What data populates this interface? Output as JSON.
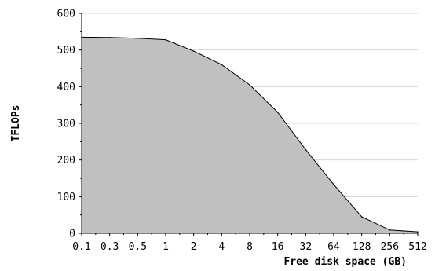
{
  "chart_data": {
    "type": "area",
    "title": "",
    "xlabel": "Free disk space (GB)",
    "ylabel": "TFLOPs",
    "x_scale": "categorical",
    "categories": [
      "0.1",
      "0.3",
      "0.5",
      "1",
      "2",
      "4",
      "8",
      "16",
      "32",
      "64",
      "128",
      "256",
      "512"
    ],
    "y_ticks": [
      "0",
      "100",
      "200",
      "300",
      "400",
      "500",
      "600"
    ],
    "ylim": [
      0,
      600
    ],
    "grid": true,
    "series": [
      {
        "values": [
          535,
          534,
          532,
          528,
          497,
          460,
          405,
          330,
          228,
          133,
          45,
          9,
          4
        ],
        "color": "#c0c0c0",
        "line_color": "#000000"
      }
    ]
  }
}
